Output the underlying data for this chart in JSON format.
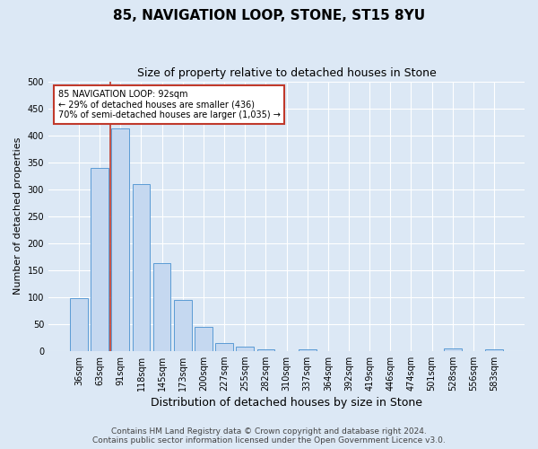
{
  "title": "85, NAVIGATION LOOP, STONE, ST15 8YU",
  "subtitle": "Size of property relative to detached houses in Stone",
  "xlabel": "Distribution of detached houses by size in Stone",
  "ylabel": "Number of detached properties",
  "categories": [
    "36sqm",
    "63sqm",
    "91sqm",
    "118sqm",
    "145sqm",
    "173sqm",
    "200sqm",
    "227sqm",
    "255sqm",
    "282sqm",
    "310sqm",
    "337sqm",
    "364sqm",
    "392sqm",
    "419sqm",
    "446sqm",
    "474sqm",
    "501sqm",
    "528sqm",
    "556sqm",
    "583sqm"
  ],
  "values": [
    97,
    340,
    412,
    310,
    163,
    95,
    44,
    15,
    8,
    3,
    0,
    2,
    0,
    0,
    0,
    0,
    0,
    0,
    4,
    0,
    3
  ],
  "bar_color": "#c5d8f0",
  "bar_edge_color": "#5b9bd5",
  "vline_index": 2,
  "vline_color": "#c0392b",
  "annotation_text": "85 NAVIGATION LOOP: 92sqm\n← 29% of detached houses are smaller (436)\n70% of semi-detached houses are larger (1,035) →",
  "annotation_box_color": "#ffffff",
  "annotation_box_edge_color": "#c0392b",
  "footer": "Contains HM Land Registry data © Crown copyright and database right 2024.\nContains public sector information licensed under the Open Government Licence v3.0.",
  "ylim": [
    0,
    500
  ],
  "background_color": "#dce8f5",
  "plot_bg_color": "#dce8f5",
  "title_fontsize": 11,
  "subtitle_fontsize": 9,
  "xlabel_fontsize": 9,
  "ylabel_fontsize": 8,
  "footer_fontsize": 6.5,
  "tick_fontsize": 7
}
